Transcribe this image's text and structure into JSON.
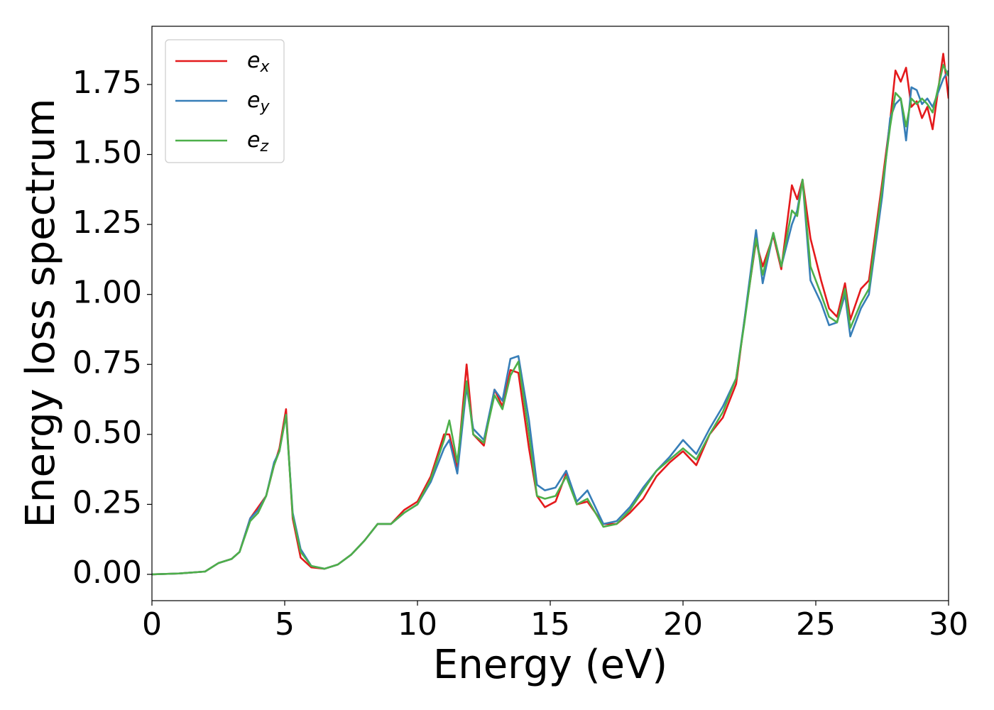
{
  "chart_data": {
    "type": "line",
    "xlabel": "Energy (eV)",
    "ylabel": "Energy loss spectrum",
    "x": [
      0,
      1,
      2,
      2.5,
      3,
      3.3,
      3.7,
      4,
      4.3,
      4.6,
      4.8,
      5.05,
      5.3,
      5.6,
      6,
      6.5,
      7,
      7.5,
      8,
      8.5,
      9,
      9.5,
      10,
      10.5,
      11,
      11.2,
      11.5,
      11.85,
      12.1,
      12.5,
      12.9,
      13.2,
      13.5,
      13.8,
      14.2,
      14.5,
      14.8,
      15.2,
      15.6,
      16,
      16.4,
      17,
      17.5,
      18,
      18.5,
      19,
      19.5,
      20,
      20.5,
      21,
      21.5,
      22,
      22.3,
      22.75,
      23,
      23.4,
      23.7,
      24.1,
      24.3,
      24.5,
      24.8,
      25.2,
      25.5,
      25.8,
      26.1,
      26.3,
      26.7,
      27,
      27.5,
      27.8,
      28,
      28.2,
      28.4,
      28.6,
      28.8,
      29,
      29.2,
      29.4,
      29.8,
      30
    ],
    "series": [
      {
        "name": "e_x",
        "color": "#e41a1c",
        "values": [
          0,
          0.003,
          0.01,
          0.04,
          0.055,
          0.08,
          0.2,
          0.24,
          0.28,
          0.39,
          0.45,
          0.59,
          0.2,
          0.06,
          0.025,
          0.02,
          0.035,
          0.07,
          0.12,
          0.18,
          0.18,
          0.23,
          0.26,
          0.35,
          0.5,
          0.5,
          0.38,
          0.75,
          0.5,
          0.46,
          0.66,
          0.6,
          0.73,
          0.72,
          0.45,
          0.28,
          0.24,
          0.26,
          0.36,
          0.25,
          0.26,
          0.18,
          0.18,
          0.22,
          0.27,
          0.35,
          0.4,
          0.44,
          0.39,
          0.5,
          0.56,
          0.68,
          0.9,
          1.19,
          1.1,
          1.21,
          1.09,
          1.39,
          1.34,
          1.41,
          1.2,
          1.05,
          0.95,
          0.92,
          1.04,
          0.91,
          1.02,
          1.05,
          1.4,
          1.62,
          1.8,
          1.76,
          1.81,
          1.67,
          1.69,
          1.63,
          1.67,
          1.59,
          1.86,
          1.7
        ]
      },
      {
        "name": "e_y",
        "color": "#377eb8",
        "values": [
          0,
          0.003,
          0.01,
          0.04,
          0.055,
          0.08,
          0.2,
          0.23,
          0.28,
          0.4,
          0.44,
          0.57,
          0.22,
          0.09,
          0.03,
          0.02,
          0.035,
          0.07,
          0.12,
          0.18,
          0.18,
          0.22,
          0.25,
          0.33,
          0.45,
          0.48,
          0.36,
          0.67,
          0.52,
          0.48,
          0.66,
          0.62,
          0.77,
          0.78,
          0.55,
          0.32,
          0.3,
          0.31,
          0.37,
          0.26,
          0.3,
          0.18,
          0.19,
          0.24,
          0.31,
          0.37,
          0.42,
          0.48,
          0.43,
          0.52,
          0.6,
          0.7,
          0.9,
          1.23,
          1.04,
          1.22,
          1.1,
          1.25,
          1.3,
          1.41,
          1.05,
          0.97,
          0.89,
          0.9,
          1.0,
          0.85,
          0.95,
          1.0,
          1.35,
          1.63,
          1.68,
          1.7,
          1.55,
          1.74,
          1.73,
          1.68,
          1.7,
          1.67,
          1.77,
          1.8
        ]
      },
      {
        "name": "e_z",
        "color": "#4daf4a",
        "values": [
          0,
          0.003,
          0.01,
          0.04,
          0.055,
          0.08,
          0.19,
          0.22,
          0.28,
          0.39,
          0.44,
          0.57,
          0.21,
          0.08,
          0.03,
          0.02,
          0.035,
          0.07,
          0.12,
          0.18,
          0.18,
          0.22,
          0.25,
          0.34,
          0.48,
          0.55,
          0.4,
          0.69,
          0.5,
          0.47,
          0.64,
          0.59,
          0.71,
          0.76,
          0.5,
          0.28,
          0.27,
          0.28,
          0.35,
          0.25,
          0.27,
          0.17,
          0.18,
          0.23,
          0.3,
          0.37,
          0.41,
          0.45,
          0.41,
          0.5,
          0.58,
          0.7,
          0.89,
          1.2,
          1.07,
          1.22,
          1.1,
          1.3,
          1.28,
          1.41,
          1.1,
          1.0,
          0.92,
          0.9,
          1.02,
          0.88,
          0.97,
          1.02,
          1.38,
          1.6,
          1.72,
          1.7,
          1.6,
          1.7,
          1.68,
          1.7,
          1.68,
          1.65,
          1.82,
          1.78
        ]
      }
    ],
    "xlim": [
      0,
      30
    ],
    "xticks": [
      0,
      5,
      10,
      15,
      20,
      25,
      30
    ],
    "ylim": [
      -0.094,
      1.958
    ],
    "yticks": [
      {
        "value": 0,
        "label": "0.00"
      },
      {
        "value": 0.25,
        "label": "0.25"
      },
      {
        "value": 0.5,
        "label": "0.50"
      },
      {
        "value": 0.75,
        "label": "0.75"
      },
      {
        "value": 1,
        "label": "1.00"
      },
      {
        "value": 1.25,
        "label": "1.25"
      },
      {
        "value": 1.5,
        "label": "1.50"
      },
      {
        "value": 1.75,
        "label": "1.75"
      }
    ],
    "legend": "upper left",
    "grid": false
  }
}
